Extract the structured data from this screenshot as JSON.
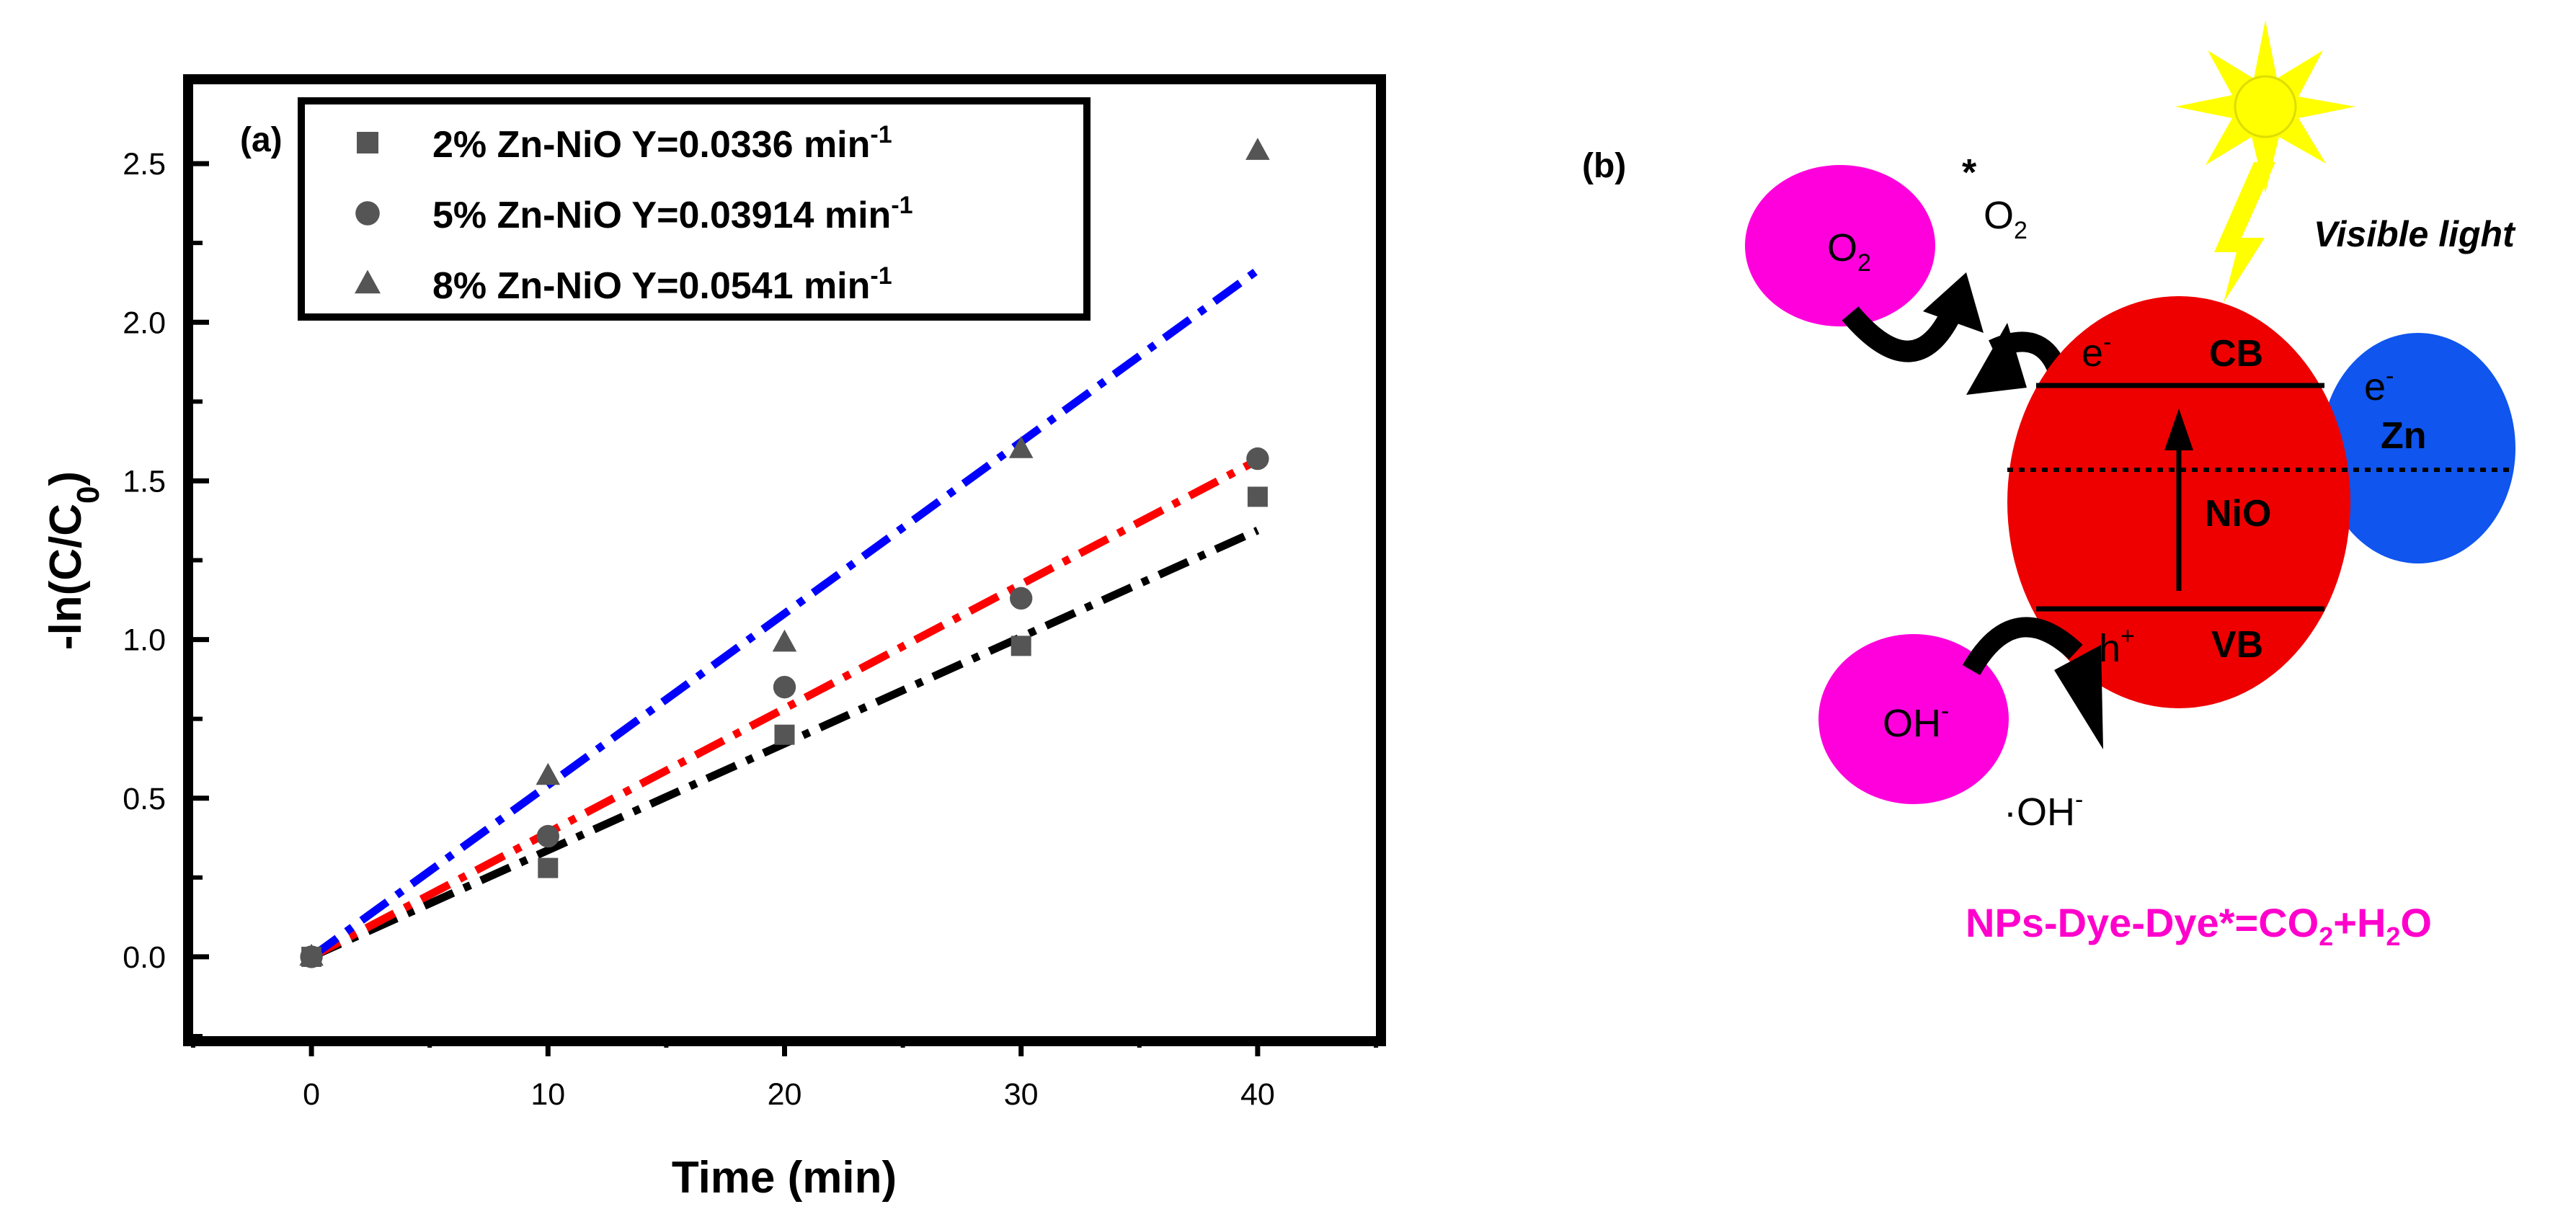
{
  "chart_data": {
    "type": "scatter",
    "panel_label": "(a)",
    "xlabel": "Time (min)",
    "ylabel": {
      "main": "-ln(C/C",
      "sub": "0",
      "close": ")"
    },
    "xlim": [
      -5,
      45
    ],
    "ylim": [
      -0.25,
      2.75
    ],
    "xticks": [
      "0",
      "10",
      "20",
      "30",
      "40"
    ],
    "yticks": [
      "0.0",
      "0.5",
      "1.0",
      "1.5",
      "2.0",
      "2.5"
    ],
    "series": [
      {
        "name": "2% Zn-NiO",
        "label": "2% Zn-NiO Y=0.0336 min",
        "unit_exp": "-1",
        "marker": "square",
        "x": [
          0,
          10,
          20,
          30,
          40
        ],
        "y": [
          0.0,
          0.28,
          0.7,
          0.98,
          1.45
        ],
        "fit_slope": 0.0336,
        "fit_color": "#000000"
      },
      {
        "name": "5% Zn-NiO",
        "label": "5% Zn-NiO Y=0.03914 min",
        "unit_exp": "-1",
        "marker": "circle",
        "x": [
          0,
          10,
          20,
          30,
          40
        ],
        "y": [
          0.0,
          0.38,
          0.85,
          1.13,
          1.57
        ],
        "fit_slope": 0.03914,
        "fit_color": "#ff0000"
      },
      {
        "name": "8% Zn-NiO",
        "label": "8% Zn-NiO Y=0.0541 min",
        "unit_exp": "-1",
        "marker": "triangle",
        "x": [
          0,
          10,
          20,
          30,
          40
        ],
        "y": [
          0.0,
          0.57,
          0.99,
          1.6,
          2.54
        ],
        "fit_slope": 0.0541,
        "fit_color": "#0000ff"
      }
    ],
    "marker_color": "#555555",
    "legend_position": "top-left"
  },
  "schematic": {
    "panel_label": "(b)",
    "visible_light": "Visible light",
    "o2_base": "O",
    "o2_sub": "2",
    "o2_radical_star": "*",
    "o2_radical_base": "O",
    "o2_radical_sub": "2",
    "electron_base": "e",
    "electron_sup": "-",
    "cb": "CB",
    "vb": "VB",
    "hole_base": "h",
    "hole_sup": "+",
    "nio": "NiO",
    "zn": "Zn",
    "zn_electron_base": "e",
    "zn_electron_sup": "-",
    "oh_base": "OH",
    "oh_sup": "-",
    "oh_radical_dot": "·",
    "oh_radical_base": "OH",
    "oh_radical_sup": "-",
    "eq_part1": "NPs-Dye-Dye*=CO",
    "eq_sub1": "2",
    "eq_part2": "+H",
    "eq_sub2": "2",
    "eq_part3": "O",
    "colors": {
      "nio": "#ee0000",
      "zn": "#0f55ee",
      "oxygen": "#ff00dd",
      "sun": "#ffff00",
      "equation": "#ff00cc"
    }
  }
}
